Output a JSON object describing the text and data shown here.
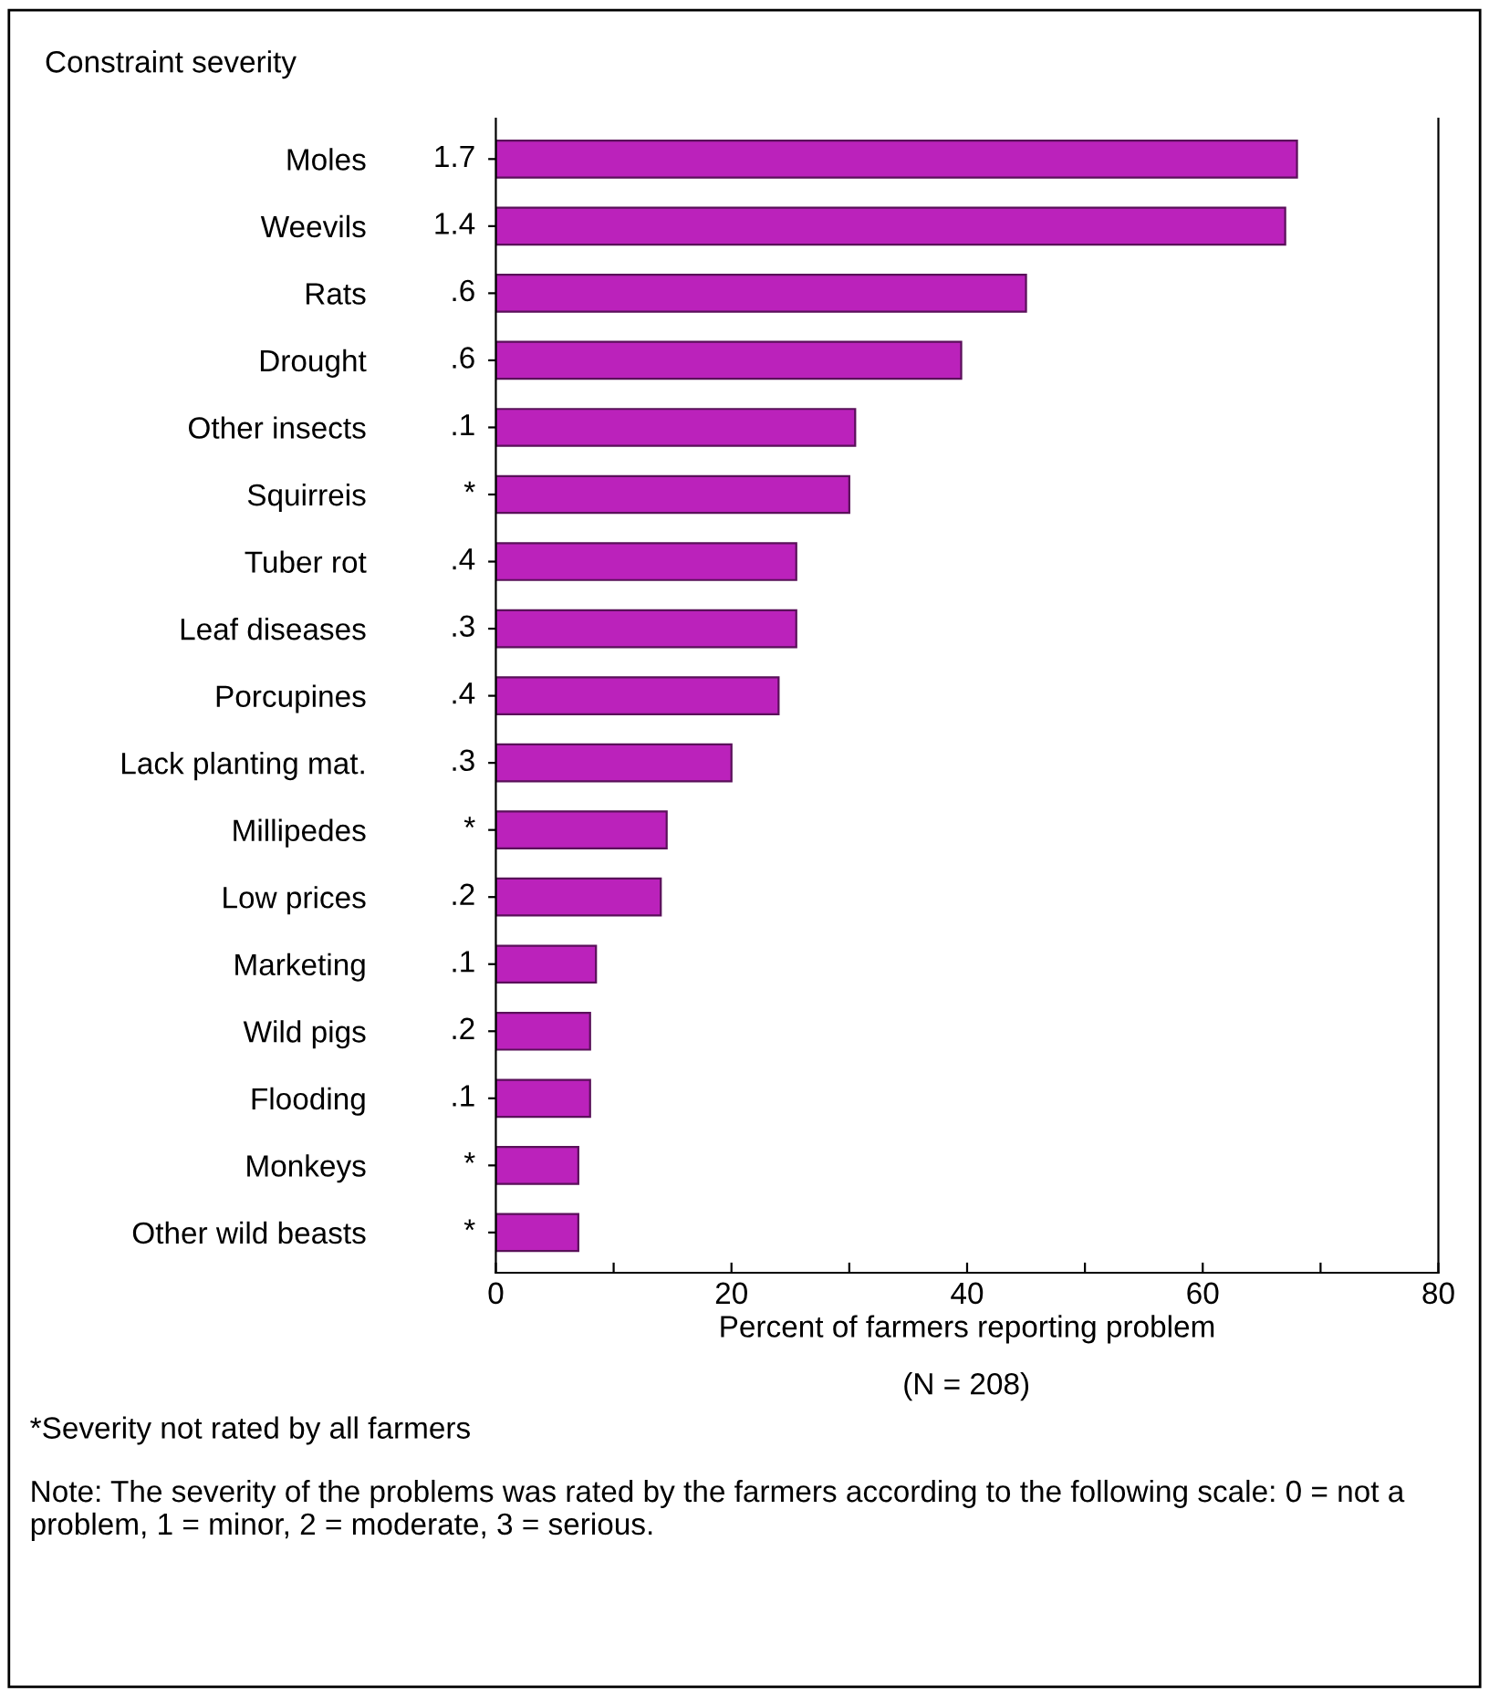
{
  "chart_data": {
    "type": "bar",
    "orientation": "horizontal",
    "categories": [
      "Moles",
      "Weevils",
      "Rats",
      "Drought",
      "Other insects",
      "Squirreis",
      "Tuber rot",
      "Leaf diseases",
      "Porcupines",
      "Lack planting mat.",
      "Millipedes",
      "Low prices",
      "Marketing",
      "Wild pigs",
      "Flooding",
      "Monkeys",
      "Other wild beasts"
    ],
    "values": [
      68,
      67,
      45,
      39.5,
      30.5,
      30,
      25.5,
      25.5,
      24,
      20,
      14.5,
      14,
      8.5,
      8,
      8,
      7,
      7
    ],
    "color": "#bb22bb",
    "xlabel": "Percent of farmers reporting problem",
    "xlim": [
      0,
      80
    ],
    "xticks": [
      0,
      {
        "value": 10,
        "label": null
      },
      20,
      {
        "value": 30,
        "label": null
      },
      40,
      {
        "value": 50,
        "label": null
      },
      60,
      {
        "value": 70,
        "label": null
      },
      80
    ],
    "grid": false,
    "annotations": [
      "Constraint severity",
      "1.7",
      "1.4",
      ".6",
      ".6",
      ".1",
      "*",
      ".4",
      ".3",
      ".4",
      ".3",
      "*",
      ".2",
      ".1",
      ".2",
      ".1",
      "*",
      "*",
      "(N = 208)",
      "*Severity not rated by all farmers",
      "Note: The severity of the problems was rated by the farmers according to the following scale: 0 = not a problem, 1 = minor, 2 = moderate, 3 = serious."
    ]
  }
}
